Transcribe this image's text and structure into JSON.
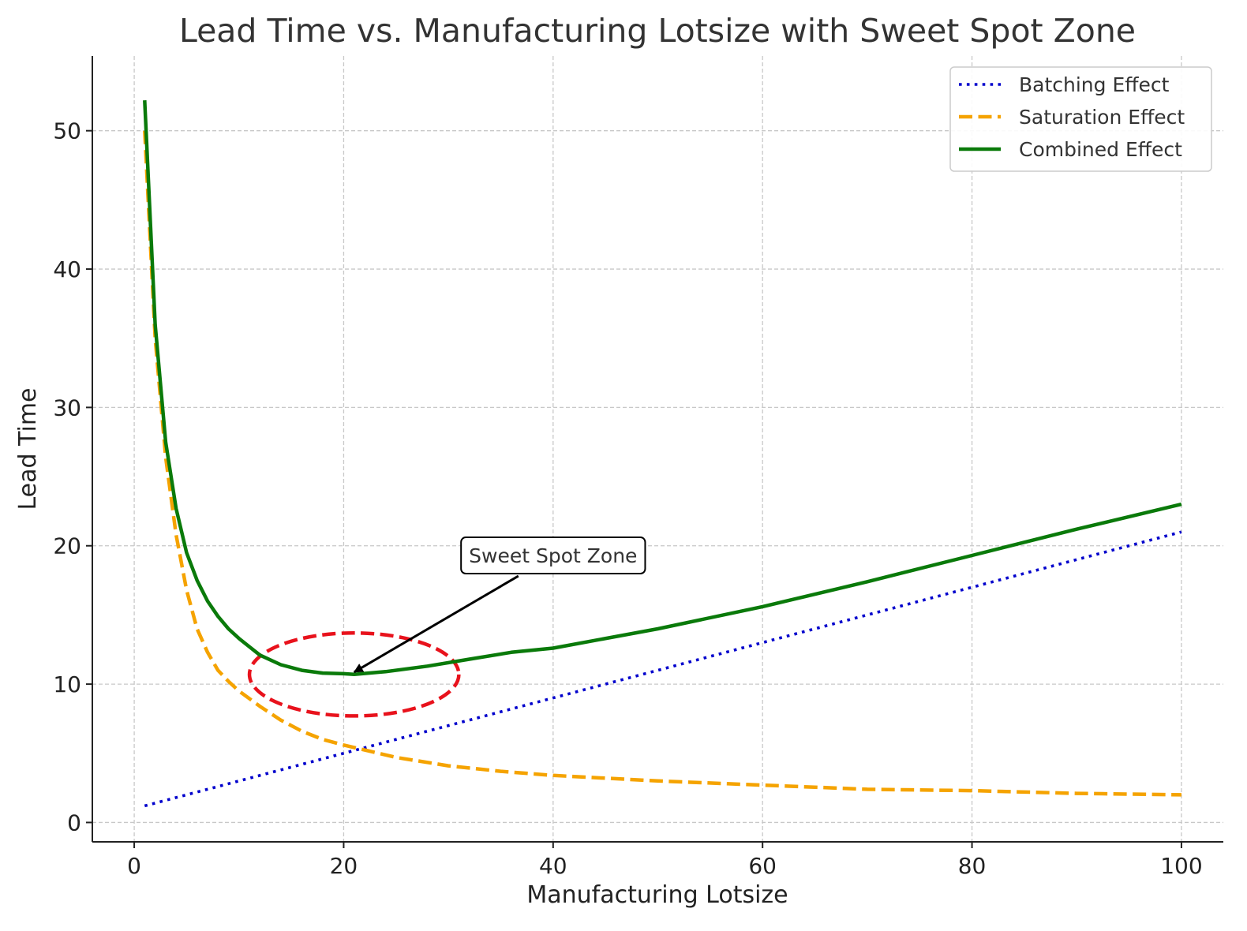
{
  "chart_data": {
    "type": "line",
    "title": "Lead Time vs. Manufacturing Lotsize with Sweet Spot Zone",
    "xlabel": "Manufacturing Lotsize",
    "ylabel": "Lead Time",
    "xlim": [
      -4,
      104
    ],
    "ylim": [
      -1.4,
      55.4
    ],
    "xticks": [
      0,
      20,
      40,
      60,
      80,
      100
    ],
    "yticks": [
      0,
      10,
      20,
      30,
      40,
      50
    ],
    "grid": true,
    "legend": "top-right",
    "series": [
      {
        "name": "Batching Effect",
        "color": "#0000cc",
        "style": "dotted",
        "x": [
          1,
          100
        ],
        "y": [
          1.2,
          21.0
        ]
      },
      {
        "name": "Saturation Effect",
        "color": "#f5a300",
        "style": "dashed",
        "x": [
          1,
          2,
          3,
          4,
          5,
          6,
          7,
          8,
          9,
          10,
          12,
          14,
          16,
          18,
          20,
          25,
          30,
          35,
          40,
          50,
          60,
          70,
          80,
          90,
          100
        ],
        "y": [
          50.0,
          35.0,
          26.4,
          20.8,
          16.8,
          14.0,
          12.3,
          11.0,
          10.2,
          9.5,
          8.4,
          7.4,
          6.6,
          6.0,
          5.6,
          4.7,
          4.1,
          3.7,
          3.4,
          3.0,
          2.7,
          2.4,
          2.3,
          2.1,
          2.0
        ]
      },
      {
        "name": "Combined Effect",
        "color": "#0a7a0a",
        "style": "solid",
        "x": [
          1,
          2,
          3,
          4,
          5,
          6,
          7,
          8,
          9,
          10,
          11,
          12,
          14,
          16,
          18,
          20,
          21,
          24,
          28,
          32,
          36,
          40,
          50,
          60,
          70,
          80,
          90,
          100
        ],
        "y": [
          52.2,
          36.0,
          27.5,
          22.7,
          19.5,
          17.5,
          16.0,
          14.9,
          14.0,
          13.3,
          12.7,
          12.1,
          11.4,
          11.0,
          10.8,
          10.75,
          10.7,
          10.9,
          11.3,
          11.8,
          12.3,
          12.6,
          14.0,
          15.6,
          17.4,
          19.3,
          21.2,
          23.0
        ]
      }
    ],
    "annotation": {
      "text": "Sweet Spot Zone",
      "point": [
        21,
        10.7
      ],
      "text_position": [
        40,
        19.3
      ],
      "zone": {
        "center": [
          21,
          10.7
        ],
        "rx": 10,
        "ry": 3.0,
        "color": "#e8121c"
      }
    }
  }
}
